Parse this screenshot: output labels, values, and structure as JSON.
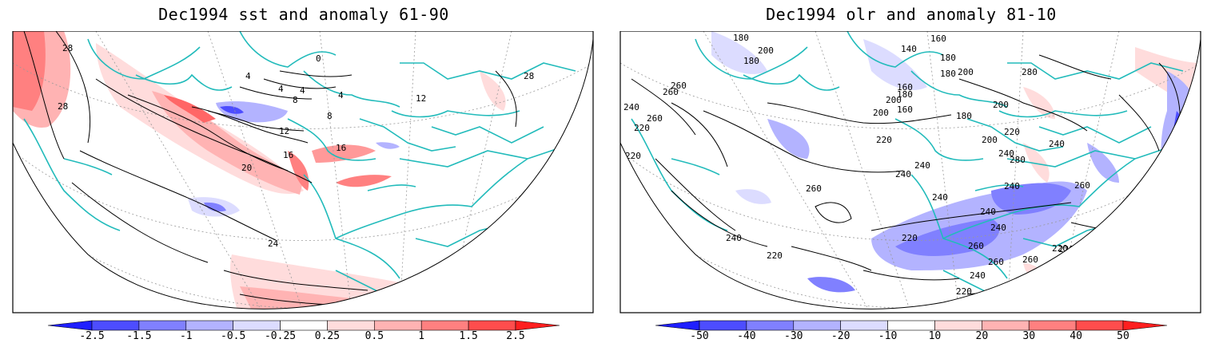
{
  "panels": [
    {
      "id": "sst",
      "title": "Dec1994 sst and anomaly 61-90",
      "contour_labels": [
        "28",
        "28",
        "28",
        "0",
        "4",
        "4",
        "4",
        "4",
        "8",
        "8",
        "12",
        "12",
        "16",
        "16",
        "20",
        "24",
        "28"
      ],
      "colorbar": {
        "ticks": [
          "-2.5",
          "-1.5",
          "-1",
          "-0.5",
          "-0.25",
          "0.25",
          "0.5",
          "1",
          "1.5",
          "2.5"
        ],
        "colors": [
          "#1f1fff",
          "#4d4dff",
          "#8080ff",
          "#b3b3ff",
          "#dcdcff",
          "#ffffff",
          "#ffdcdc",
          "#ffb3b3",
          "#ff8080",
          "#ff4d4d",
          "#ff1f1f"
        ]
      }
    },
    {
      "id": "olr",
      "title": "Dec1994 olr and anomaly 81-10",
      "contour_labels": [
        "180",
        "200",
        "180",
        "140",
        "160",
        "180",
        "200",
        "160",
        "260",
        "280",
        "260",
        "240",
        "220",
        "220",
        "260",
        "200",
        "180",
        "180",
        "160",
        "200",
        "180",
        "200",
        "220",
        "240",
        "240",
        "200",
        "280",
        "220",
        "240",
        "240",
        "260",
        "240",
        "260",
        "240",
        "220",
        "240",
        "260",
        "260",
        "260",
        "220",
        "240",
        "220",
        "240",
        "220",
        "240",
        "220"
      ],
      "colorbar": {
        "ticks": [
          "-50",
          "-40",
          "-30",
          "-20",
          "-10",
          "10",
          "20",
          "30",
          "40",
          "50"
        ],
        "colors": [
          "#1f1fff",
          "#4d4dff",
          "#8080ff",
          "#b3b3ff",
          "#dcdcff",
          "#ffffff",
          "#ffdcdc",
          "#ffb3b3",
          "#ff8080",
          "#ff4d4d",
          "#ff1f1f"
        ]
      }
    }
  ],
  "colors": {
    "coastline": "#22bbbb",
    "contour": "#000000",
    "grid": "#999999",
    "frame": "#000000"
  }
}
